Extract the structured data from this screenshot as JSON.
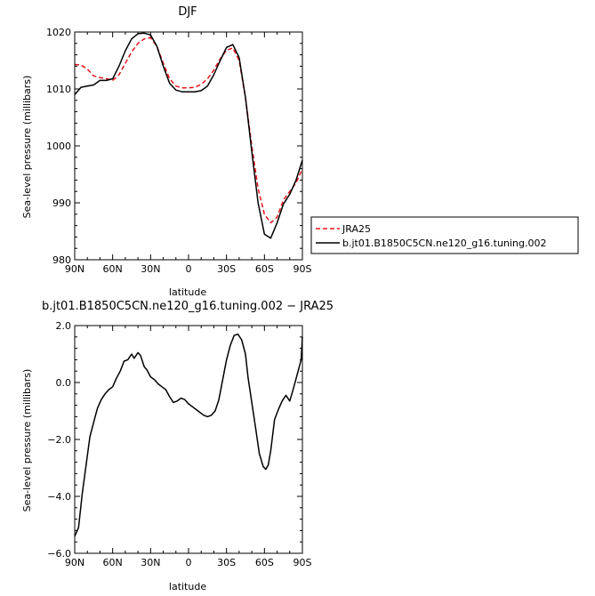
{
  "chart_data": [
    {
      "type": "line",
      "title": "DJF",
      "xlabel": "latitude",
      "ylabel": "Sea-level pressure (millibars)",
      "xlim": [
        90,
        -90
      ],
      "ylim": [
        980,
        1020
      ],
      "x_ticks": [
        90,
        60,
        30,
        0,
        -30,
        -60,
        -90
      ],
      "x_tick_labels": [
        "90N",
        "60N",
        "30N",
        "0",
        "30S",
        "60S",
        "90S"
      ],
      "y_ticks": [
        980,
        990,
        1000,
        1010,
        1020
      ],
      "y_tick_labels": [
        "980",
        "990",
        "1000",
        "1010",
        "1020"
      ],
      "legend_position": "outside-right",
      "series": [
        {
          "name": "JRA25",
          "color": "#e8141b",
          "dash": "dashed",
          "x": [
            90,
            85,
            80,
            75,
            70,
            65,
            60,
            55,
            50,
            45,
            40,
            35,
            30,
            25,
            20,
            15,
            10,
            5,
            0,
            -5,
            -10,
            -15,
            -20,
            -25,
            -30,
            -35,
            -40,
            -45,
            -50,
            -55,
            -60,
            -65,
            -70,
            -75,
            -80,
            -85,
            -90
          ],
          "values": [
            1014.3,
            1014.2,
            1013.5,
            1012.3,
            1012,
            1011.8,
            1011.5,
            1012.5,
            1014.5,
            1016.5,
            1018,
            1018.8,
            1019,
            1017.5,
            1014.5,
            1011.8,
            1010.5,
            1010.2,
            1010.2,
            1010.3,
            1010.8,
            1011.8,
            1013.3,
            1015.3,
            1016.8,
            1017.2,
            1015,
            1008.5,
            1000,
            992.5,
            988,
            986.5,
            987.5,
            990.5,
            992,
            993.5,
            996
          ]
        },
        {
          "name": "b.jt01.B1850C5CN.ne120_g16.tuning.002",
          "color": "#000000",
          "dash": "solid",
          "x": [
            90,
            85,
            80,
            75,
            70,
            65,
            60,
            55,
            50,
            45,
            40,
            35,
            30,
            25,
            20,
            15,
            10,
            5,
            0,
            -5,
            -10,
            -15,
            -20,
            -25,
            -30,
            -35,
            -40,
            -45,
            -50,
            -55,
            -60,
            -65,
            -70,
            -75,
            -80,
            -85,
            -90
          ],
          "values": [
            1009,
            1010.3,
            1010.5,
            1010.7,
            1011.5,
            1011.5,
            1011.8,
            1014,
            1016.7,
            1018.8,
            1019.7,
            1019.8,
            1019.5,
            1017.5,
            1014,
            1011,
            1009.8,
            1009.5,
            1009.5,
            1009.5,
            1009.7,
            1010.5,
            1012.5,
            1015,
            1017.3,
            1017.8,
            1015.5,
            1008.5,
            999,
            990,
            984.5,
            983.8,
            986.5,
            989.8,
            991.5,
            994,
            997.5
          ]
        }
      ]
    },
    {
      "type": "line",
      "title": "b.jt01.B1850C5CN.ne120_g16.tuning.002 − JRA25",
      "xlabel": "latitude",
      "ylabel": "Sea-level pressure (millibars)",
      "xlim": [
        90,
        -90
      ],
      "ylim": [
        -6,
        2
      ],
      "x_ticks": [
        90,
        60,
        30,
        0,
        -30,
        -60,
        -90
      ],
      "x_tick_labels": [
        "90N",
        "60N",
        "30N",
        "0",
        "30S",
        "60S",
        "90S"
      ],
      "y_ticks": [
        -6,
        -4,
        -2,
        0,
        2
      ],
      "y_tick_labels": [
        "−6.0",
        "−4.0",
        "−2.0",
        "0.0",
        "2.0"
      ],
      "series": [
        {
          "color": "#000000",
          "dash": "solid",
          "x": [
            90,
            87,
            84,
            81,
            78,
            75,
            72,
            69,
            66,
            63,
            60,
            57,
            54,
            51,
            48,
            45,
            43,
            40,
            38,
            35,
            33,
            30,
            27,
            24,
            21,
            18,
            15,
            12,
            9,
            6,
            3,
            0,
            -3,
            -6,
            -9,
            -12,
            -15,
            -18,
            -21,
            -24,
            -27,
            -30,
            -33,
            -36,
            -39,
            -42,
            -45,
            -47,
            -50,
            -53,
            -56,
            -59,
            -61,
            -63,
            -65,
            -68,
            -71,
            -74,
            -77,
            -80,
            -83,
            -86,
            -89,
            -90
          ],
          "values": [
            -5.4,
            -5.1,
            -3.9,
            -2.9,
            -1.9,
            -1.4,
            -0.9,
            -0.6,
            -0.4,
            -0.25,
            -0.15,
            0.15,
            0.4,
            0.75,
            0.8,
            1.0,
            0.85,
            1.05,
            0.95,
            0.55,
            0.45,
            0.2,
            0.1,
            -0.05,
            -0.15,
            -0.25,
            -0.5,
            -0.7,
            -0.65,
            -0.55,
            -0.6,
            -0.75,
            -0.85,
            -0.95,
            -1.05,
            -1.15,
            -1.2,
            -1.15,
            -1.0,
            -0.6,
            0.1,
            0.8,
            1.3,
            1.65,
            1.7,
            1.5,
            1.0,
            0.2,
            -0.7,
            -1.6,
            -2.5,
            -2.95,
            -3.05,
            -2.9,
            -2.4,
            -1.3,
            -0.95,
            -0.65,
            -0.45,
            -0.65,
            -0.2,
            0.3,
            0.8,
            1.6
          ]
        }
      ]
    }
  ]
}
